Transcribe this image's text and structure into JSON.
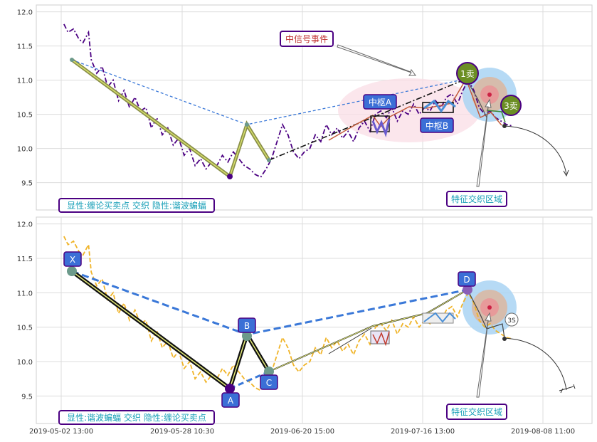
{
  "colors": {
    "price_line": "#4b0082",
    "price_line_bottom": "#f0b429",
    "dashed_blue": "#3a78d8",
    "chan_black": "#111111",
    "chan_olive": "#8a8f4a",
    "label_blue": "#3b6fd6",
    "label_border": "#4b0082",
    "sell_green": "#6b8e23",
    "zone_pink": "#f7d6df",
    "zone_blue": "#a8d4f2",
    "grid": "#d9d9d9",
    "caption_text": "#1aa0b8"
  },
  "chart_data": [
    {
      "panel": "top",
      "type": "line",
      "y_ticks": [
        "12.0",
        "11.5",
        "11.0",
        "10.5",
        "10.0",
        "9.5"
      ],
      "ylim": [
        9.1,
        12.1
      ],
      "grid": true,
      "price_series": [
        [
          0.2,
          11.82
        ],
        [
          0.5,
          11.7
        ],
        [
          0.9,
          11.75
        ],
        [
          1.3,
          11.6
        ],
        [
          1.6,
          11.55
        ],
        [
          2.0,
          11.7
        ],
        [
          2.2,
          11.3
        ],
        [
          2.6,
          11.1
        ],
        [
          3.0,
          11.2
        ],
        [
          3.4,
          10.9
        ],
        [
          3.8,
          11.0
        ],
        [
          4.2,
          10.7
        ],
        [
          4.6,
          10.85
        ],
        [
          5.0,
          10.6
        ],
        [
          5.4,
          10.75
        ],
        [
          5.8,
          10.55
        ],
        [
          6.2,
          10.6
        ],
        [
          6.6,
          10.3
        ],
        [
          7.0,
          10.45
        ],
        [
          7.4,
          10.2
        ],
        [
          7.8,
          10.3
        ],
        [
          8.2,
          10.05
        ],
        [
          8.6,
          10.15
        ],
        [
          9.0,
          9.9
        ],
        [
          9.4,
          10.0
        ],
        [
          9.8,
          9.75
        ],
        [
          10.2,
          9.85
        ],
        [
          10.6,
          9.7
        ],
        [
          11.0,
          9.8
        ],
        [
          11.4,
          9.75
        ],
        [
          11.8,
          9.9
        ],
        [
          12.2,
          9.8
        ],
        [
          12.6,
          9.95
        ],
        [
          13.0,
          9.85
        ],
        [
          13.4,
          9.75
        ],
        [
          13.8,
          9.7
        ],
        [
          14.2,
          9.62
        ],
        [
          14.6,
          9.58
        ],
        [
          15.0,
          9.7
        ],
        [
          15.4,
          9.85
        ],
        [
          15.8,
          10.1
        ],
        [
          16.2,
          10.35
        ],
        [
          16.6,
          10.2
        ],
        [
          17.0,
          9.95
        ],
        [
          17.4,
          9.85
        ],
        [
          17.8,
          9.95
        ],
        [
          18.2,
          10.0
        ],
        [
          18.6,
          10.2
        ],
        [
          19.0,
          10.1
        ],
        [
          19.4,
          10.35
        ],
        [
          19.8,
          10.2
        ],
        [
          20.2,
          10.3
        ],
        [
          20.6,
          10.15
        ],
        [
          21.0,
          10.25
        ],
        [
          21.4,
          10.1
        ],
        [
          21.8,
          10.3
        ],
        [
          22.2,
          10.4
        ],
        [
          22.6,
          10.25
        ],
        [
          23.0,
          10.5
        ],
        [
          23.4,
          10.55
        ],
        [
          23.8,
          10.45
        ],
        [
          24.2,
          10.6
        ],
        [
          24.6,
          10.4
        ],
        [
          25.0,
          10.55
        ],
        [
          25.4,
          10.5
        ],
        [
          25.8,
          10.65
        ],
        [
          26.2,
          10.5
        ],
        [
          26.6,
          10.6
        ],
        [
          27.0,
          10.55
        ],
        [
          27.4,
          10.7
        ],
        [
          27.8,
          10.6
        ],
        [
          28.2,
          10.75
        ],
        [
          28.6,
          10.8
        ],
        [
          29.0,
          10.65
        ],
        [
          29.4,
          10.85
        ],
        [
          29.8,
          11.0
        ],
        [
          30.2,
          10.85
        ],
        [
          30.6,
          10.6
        ],
        [
          31.0,
          10.5
        ],
        [
          31.4,
          10.55
        ],
        [
          31.8,
          10.45
        ],
        [
          32.2,
          10.4
        ],
        [
          32.6,
          10.35
        ],
        [
          33.0,
          10.33
        ]
      ],
      "stroke_points": [
        [
          0.6,
          11.3
        ],
        [
          14.4,
          9.6
        ],
        [
          15.9,
          10.38
        ],
        [
          17.3,
          9.85
        ]
      ],
      "dashed_line": [
        [
          0.6,
          11.3
        ],
        [
          15.9,
          10.38
        ],
        [
          30.6,
          11.03
        ]
      ],
      "dashdot_line": [
        [
          17.3,
          9.85
        ],
        [
          30.6,
          11.03
        ]
      ],
      "centers": [
        {
          "label": "中枢A"
        },
        {
          "label": "中枢B"
        }
      ],
      "event_label": "中信号事件",
      "sell_points": [
        {
          "label": "1卖"
        },
        {
          "label": "3卖"
        }
      ],
      "zone_label": "特征交织区域",
      "caption": "显性:缠论买卖点 交织 隐性:谐波蝙蝠"
    },
    {
      "panel": "bottom",
      "type": "line",
      "y_ticks": [
        "12.0",
        "11.5",
        "11.0",
        "10.5",
        "10.0",
        "9.5"
      ],
      "ylim": [
        9.1,
        12.1
      ],
      "grid": true,
      "harmonic_points": [
        {
          "label": "X",
          "x": 0.6,
          "y": 11.3
        },
        {
          "label": "A",
          "x": 14.4,
          "y": 9.6
        },
        {
          "label": "B",
          "x": 15.9,
          "y": 10.38
        },
        {
          "label": "C",
          "x": 17.3,
          "y": 9.85
        },
        {
          "label": "D",
          "x": 30.6,
          "y": 11.03
        }
      ],
      "sell_marker": "3S",
      "zone_label": "特征交织区域",
      "caption": "显性:谐波蝙蝠 交织 隐性:缠论买卖点"
    }
  ],
  "x_ticks": [
    "2019-05-02 13:00",
    "2019-05-28 10:30",
    "2019-06-20 15:00",
    "2019-07-16 13:00",
    "2019-08-08 11:00"
  ]
}
